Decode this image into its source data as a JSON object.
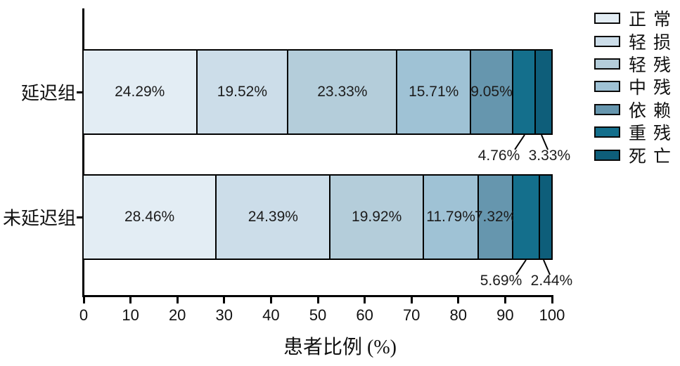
{
  "chart_data": {
    "type": "bar",
    "orientation": "horizontal",
    "stacked": true,
    "title": "",
    "xlabel": "患者比例 (%)",
    "ylabel": "",
    "xlim": [
      0,
      100
    ],
    "x_ticks": [
      0,
      10,
      20,
      30,
      40,
      50,
      60,
      70,
      80,
      90,
      100
    ],
    "grid": false,
    "legend_position": "right",
    "categories": [
      "延迟组",
      "未延迟组"
    ],
    "series": [
      {
        "name": "正常",
        "color": "#e3edf4",
        "values": [
          24.29,
          28.46
        ]
      },
      {
        "name": "轻损",
        "color": "#ccdde9",
        "values": [
          19.52,
          24.39
        ]
      },
      {
        "name": "轻残",
        "color": "#b4cdda",
        "values": [
          23.33,
          19.92
        ]
      },
      {
        "name": "中残",
        "color": "#9fc2d5",
        "values": [
          15.71,
          11.79
        ]
      },
      {
        "name": "依赖",
        "color": "#6696ae",
        "values": [
          9.05,
          7.32
        ]
      },
      {
        "name": "重残",
        "color": "#146f8c",
        "values": [
          4.76,
          5.69
        ]
      },
      {
        "name": "死亡",
        "color": "#0e5e7a",
        "values": [
          3.33,
          2.44
        ]
      }
    ],
    "value_label_format": "{value}%",
    "outside_label_threshold_pct": 6
  }
}
